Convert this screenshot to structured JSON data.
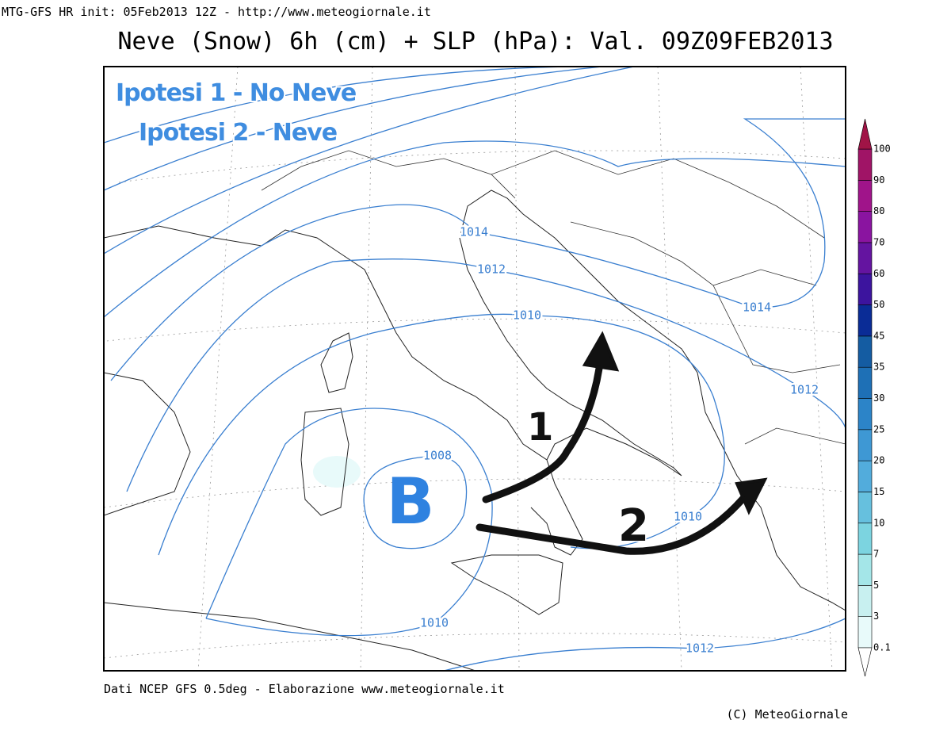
{
  "header": {
    "source_line": "MTG-GFS HR init: 05Feb2013 12Z - http://www.meteogiornale.it",
    "title": "Neve (Snow) 6h (cm) + SLP (hPa): Val. 09Z09FEB2013"
  },
  "annotations": [
    "Ipotesi 1 - No Neve",
    "Ipotesi 2 - Neve"
  ],
  "low_label": "B",
  "arrow_labels": [
    "1",
    "2"
  ],
  "isobars": [
    1014,
    1012,
    1010,
    1014,
    1012,
    1008,
    1010,
    1010,
    1012
  ],
  "colorbar": {
    "levels": [
      0.1,
      3,
      5,
      7,
      10,
      15,
      20,
      25,
      30,
      35,
      45,
      50,
      60,
      70,
      80,
      90,
      100
    ],
    "colors": [
      "#e8fafa",
      "#c8f0f0",
      "#a4e6e8",
      "#7cd4e0",
      "#66c0de",
      "#52acdc",
      "#3e98d4",
      "#2c84c8",
      "#1e70b6",
      "#145ca2",
      "#0a2c96",
      "#3c149e",
      "#6414a0",
      "#8a14a0",
      "#a0148a",
      "#a01466",
      "#a01446"
    ]
  },
  "footer": {
    "data_source": "Dati NCEP GFS 0.5deg - Elaborazione www.meteogiornale.it",
    "copyright": "(C) MeteoGiornale"
  }
}
